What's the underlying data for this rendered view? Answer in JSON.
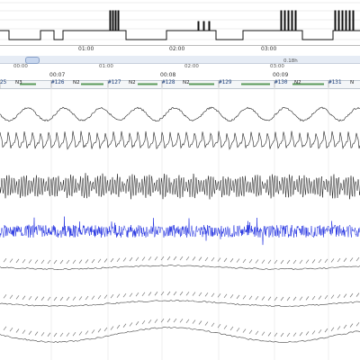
{
  "overview_axis": {
    "ticks": [
      "01:00",
      "02:00",
      "03:00"
    ]
  },
  "scroll": {
    "thumb_icon": "scroll-thumb-handle"
  },
  "detail_axis": {
    "top_ticks": [
      "00:07",
      "00:08",
      "00:09"
    ],
    "mid_ticks": [
      "00:00",
      "01:00",
      "02:00",
      "03:00"
    ],
    "duration": "0.18h"
  },
  "epochs": [
    {
      "num": "25",
      "stage": "N3"
    },
    {
      "num": "#126",
      "stage": "N2"
    },
    {
      "num": "#127",
      "stage": "N2"
    },
    {
      "num": "#128",
      "stage": "N2"
    },
    {
      "num": "#129",
      "stage": ""
    },
    {
      "num": "#130",
      "stage": "N2"
    },
    {
      "num": "#131",
      "stage": "N"
    }
  ],
  "colors": {
    "eeg": "#1a1a1a",
    "emg": "#1f2ee0",
    "epoch_line": "#5a9a5a"
  }
}
